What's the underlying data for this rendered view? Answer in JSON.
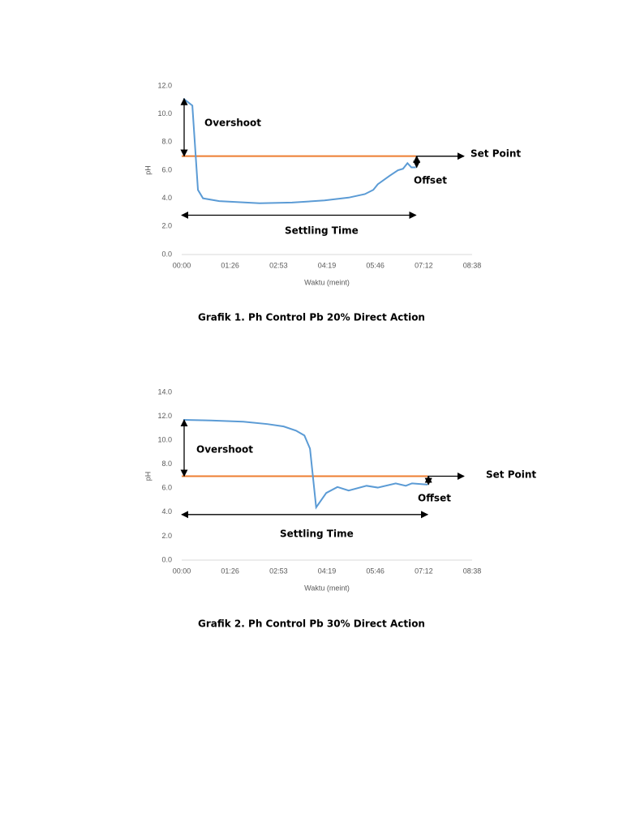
{
  "chart_data": [
    {
      "type": "line",
      "caption": "Grafik 1. Ph Control Pb 20% Direct Action",
      "x_label": "Waktu (meint)",
      "y_label": "pH",
      "x": [
        3,
        19,
        29,
        38,
        67,
        139,
        197,
        255,
        298,
        327,
        342,
        350,
        371,
        386,
        395,
        403,
        410,
        418
      ],
      "values": [
        11.1,
        10.6,
        4.6,
        4.0,
        3.8,
        3.65,
        3.7,
        3.85,
        4.05,
        4.3,
        4.6,
        5.0,
        5.6,
        6.0,
        6.1,
        6.5,
        6.2,
        6.2
      ],
      "color": "#5b9bd5",
      "set_point": 7.0,
      "set_point_color": "#ed7d31",
      "annotations": [
        "Overshoot",
        "Set Point",
        "Offset",
        "Settling Time"
      ],
      "xlim": [
        0,
        518.4
      ],
      "xticks": [
        {
          "value": 0,
          "label": "00:00"
        },
        {
          "value": 86.4,
          "label": "01:26"
        },
        {
          "value": 172.8,
          "label": "02:53"
        },
        {
          "value": 259.2,
          "label": "04:19"
        },
        {
          "value": 345.6,
          "label": "05:46"
        },
        {
          "value": 432,
          "label": "07:12"
        },
        {
          "value": 518.4,
          "label": "08:38"
        }
      ],
      "ylim": [
        0,
        12
      ],
      "yticks": [
        {
          "value": 0,
          "label": "0.0"
        },
        {
          "value": 2,
          "label": "2.0"
        },
        {
          "value": 4,
          "label": "4.0"
        },
        {
          "value": 6,
          "label": "6.0"
        },
        {
          "value": 8,
          "label": "8.0"
        },
        {
          "value": 10,
          "label": "10.0"
        },
        {
          "value": 12,
          "label": "12.0"
        }
      ]
    },
    {
      "type": "line",
      "caption": "Grafik 2. Ph Control Pb 30% Direct Action",
      "x_label": "Waktu (meint)",
      "y_label": "pH",
      "x": [
        3,
        52,
        110,
        153,
        182,
        204,
        219,
        229,
        240,
        258,
        278,
        298,
        330,
        350,
        382,
        400,
        411,
        439
      ],
      "values": [
        11.7,
        11.65,
        11.55,
        11.35,
        11.15,
        10.8,
        10.4,
        9.3,
        4.4,
        5.6,
        6.1,
        5.8,
        6.2,
        6.05,
        6.4,
        6.2,
        6.4,
        6.3
      ],
      "color": "#5b9bd5",
      "set_point": 7.0,
      "set_point_color": "#ed7d31",
      "annotations": [
        "Overshoot",
        "Set Point",
        "Offset",
        "Settling Time"
      ],
      "xlim": [
        0,
        518.4
      ],
      "xticks": [
        {
          "value": 0,
          "label": "00:00"
        },
        {
          "value": 86.4,
          "label": "01:26"
        },
        {
          "value": 172.8,
          "label": "02:53"
        },
        {
          "value": 259.2,
          "label": "04:19"
        },
        {
          "value": 345.6,
          "label": "05:46"
        },
        {
          "value": 432,
          "label": "07:12"
        },
        {
          "value": 518.4,
          "label": "08:38"
        }
      ],
      "ylim": [
        0,
        14
      ],
      "yticks": [
        {
          "value": 0,
          "label": "0.0"
        },
        {
          "value": 2,
          "label": "2.0"
        },
        {
          "value": 4,
          "label": "4.0"
        },
        {
          "value": 6,
          "label": "6.0"
        },
        {
          "value": 8,
          "label": "8.0"
        },
        {
          "value": 10,
          "label": "10.0"
        },
        {
          "value": 12,
          "label": "12.0"
        },
        {
          "value": 14,
          "label": "14.0"
        }
      ]
    }
  ]
}
